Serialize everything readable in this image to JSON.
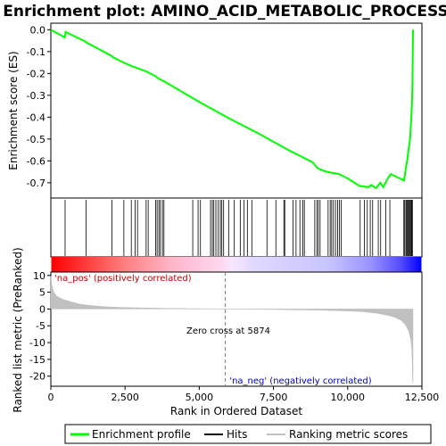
{
  "chart_data": {
    "type": "line",
    "title": "Enrichment plot: AMINO_ACID_METABOLIC_PROCESS",
    "top_panel": {
      "ylabel": "Enrichment score (ES)",
      "ylim": [
        -0.77,
        0.03
      ],
      "yticks": [
        0.0,
        -0.1,
        -0.2,
        -0.3,
        -0.4,
        -0.5,
        -0.6,
        -0.7
      ],
      "ytick_labels": [
        "0.0",
        "-0.1",
        "-0.2",
        "-0.3",
        "-0.4",
        "-0.5",
        "-0.6",
        "-0.7"
      ],
      "series": [
        {
          "name": "Enrichment profile",
          "color": "#00ff00",
          "x": [
            0,
            470,
            500,
            1180,
            1220,
            2050,
            2080,
            2450,
            2700,
            2900,
            3200,
            3500,
            3650,
            3800,
            5000,
            6000,
            7000,
            8000,
            8800,
            9000,
            9300,
            9700,
            10000,
            10400,
            10700,
            10800,
            10950,
            11100,
            11200,
            11350,
            11450,
            11900,
            11950,
            12000,
            12050,
            12100,
            12130,
            12160,
            12180,
            12200
          ],
          "y": [
            0.0,
            -0.035,
            -0.01,
            -0.055,
            -0.06,
            -0.12,
            -0.125,
            -0.15,
            -0.165,
            -0.175,
            -0.19,
            -0.21,
            -0.225,
            -0.235,
            -0.33,
            -0.405,
            -0.475,
            -0.55,
            -0.605,
            -0.635,
            -0.65,
            -0.66,
            -0.68,
            -0.715,
            -0.72,
            -0.71,
            -0.725,
            -0.7,
            -0.72,
            -0.68,
            -0.66,
            -0.69,
            -0.64,
            -0.6,
            -0.55,
            -0.5,
            -0.43,
            -0.35,
            -0.25,
            0.0
          ]
        }
      ]
    },
    "hits_panel": {
      "hit_positions": [
        480,
        1190,
        2060,
        2460,
        2710,
        2840,
        2920,
        3210,
        3280,
        3530,
        3580,
        3640,
        3690,
        3760,
        3810,
        4780,
        4960,
        5040,
        5380,
        5440,
        5490,
        5560,
        5640,
        5710,
        5760,
        5820,
        5990,
        6180,
        6380,
        6510,
        6620,
        6770,
        7280,
        7580,
        7850,
        7880,
        8160,
        8260,
        8390,
        8490,
        8540,
        8890,
        8960,
        9010,
        9070,
        9340,
        9410,
        9460,
        9520,
        9590,
        9660,
        9720,
        9780,
        10420,
        10560,
        10660,
        10760,
        10840,
        11030,
        11110,
        11280,
        11420,
        11890,
        11920,
        11960,
        11990,
        12020,
        12050,
        12080,
        12110,
        12140,
        12160,
        12180
      ]
    },
    "bottom_panel": {
      "ylabel": "Ranked list metric (PreRanked)",
      "ylim": [
        -23,
        11
      ],
      "yticks": [
        10,
        5,
        0,
        -5,
        -10,
        -15,
        -20
      ],
      "ytick_labels": [
        "10",
        "5",
        "0",
        "-5",
        "-10",
        "-15",
        "-20"
      ],
      "series": [
        {
          "name": "Ranking metric scores",
          "color": "#c0c0c0",
          "x": [
            0,
            40,
            100,
            200,
            400,
            700,
            1000,
            1500,
            2000,
            2500,
            3000,
            4000,
            5000,
            5874,
            7000,
            8000,
            9000,
            10000,
            10500,
            11000,
            11300,
            11600,
            11800,
            11950,
            12050,
            12120,
            12160,
            12190,
            12200
          ],
          "y": [
            9.8,
            7.0,
            5.0,
            3.8,
            2.9,
            2.1,
            1.4,
            0.9,
            0.6,
            0.45,
            0.35,
            0.2,
            0.1,
            0.0,
            -0.1,
            -0.2,
            -0.35,
            -0.6,
            -0.8,
            -1.3,
            -1.8,
            -2.5,
            -3.4,
            -4.8,
            -6.5,
            -9.0,
            -12.0,
            -22.0,
            -22.0
          ]
        }
      ],
      "annotations": {
        "pos_label": "'na_pos' (positively correlated)",
        "neg_label": "'na_neg' (negatively correlated)",
        "zero_cross": "Zero cross at 5874",
        "zero_cross_value": 5874
      }
    },
    "xlabel": "Rank in Ordered Dataset",
    "xlim": [
      0,
      12500
    ],
    "xticks": [
      0,
      2500,
      5000,
      7500,
      10000,
      12500
    ],
    "xtick_labels": [
      "0",
      "2,500",
      "5,000",
      "7,500",
      "10,000",
      "12,500"
    ],
    "n_genes": 12200,
    "legend": {
      "placement": "bottom",
      "items": [
        {
          "label": "Enrichment profile",
          "color": "#00ff00"
        },
        {
          "label": "Hits",
          "color": "#000000"
        },
        {
          "label": "Ranking metric scores",
          "color": "#c0c0c0"
        }
      ]
    }
  }
}
